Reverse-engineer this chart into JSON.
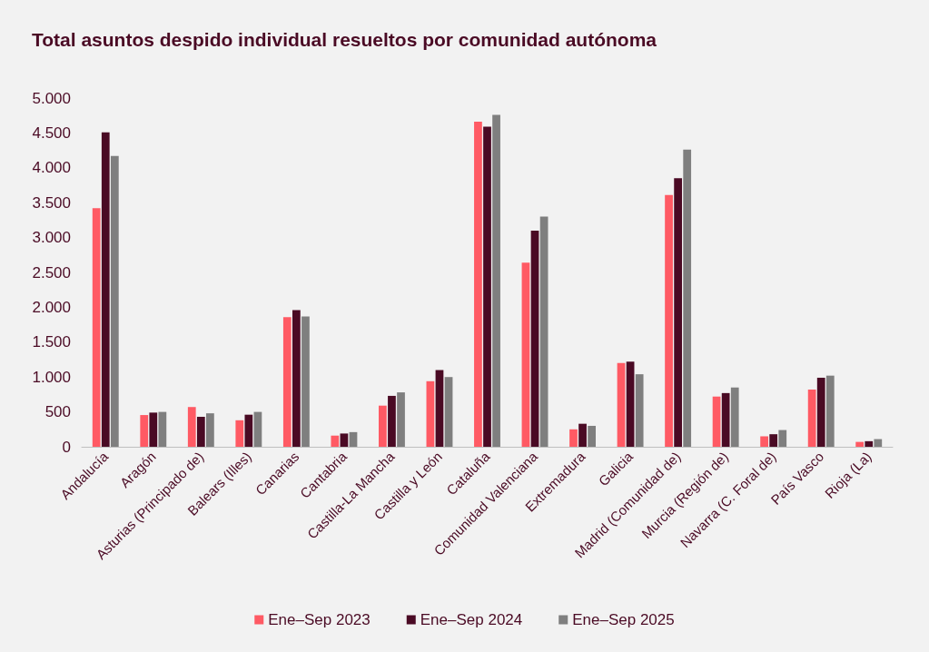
{
  "chart_data": {
    "type": "bar",
    "title": "Total asuntos despido individual resueltos por comunidad autónoma",
    "categories": [
      "Andalucía",
      "Aragón",
      "Asturias (Principado de)",
      "Balears (Illes)",
      "Canarias",
      "Cantabria",
      "Castilla-La Mancha",
      "Castilla y León",
      "Cataluña",
      "Comunidad Valenciana",
      "Extremadura",
      "Galicia",
      "Madrid (Comunidad de)",
      "Murcia (Región de)",
      "Navarra (C. Foral de)",
      "País Vasco",
      "Rioja (La)"
    ],
    "series": [
      {
        "name": "Ene–Sep 2023",
        "color": "#ff5a64",
        "values": [
          3420,
          455,
          570,
          380,
          1860,
          160,
          590,
          940,
          4660,
          2640,
          250,
          1200,
          3610,
          720,
          150,
          820,
          70
        ]
      },
      {
        "name": "Ene–Sep 2024",
        "color": "#4a0a24",
        "values": [
          4510,
          490,
          430,
          460,
          1960,
          190,
          730,
          1100,
          4590,
          3100,
          330,
          1220,
          3850,
          770,
          180,
          990,
          80
        ]
      },
      {
        "name": "Ene–Sep 2025",
        "color": "#7f7f7f",
        "values": [
          4170,
          500,
          480,
          500,
          1870,
          210,
          780,
          1000,
          4760,
          3300,
          300,
          1040,
          4260,
          850,
          240,
          1020,
          110
        ]
      }
    ],
    "ylim": [
      0,
      5000
    ],
    "yticks": [
      {
        "value": 0,
        "label": "0"
      },
      {
        "value": 500,
        "label": "500"
      },
      {
        "value": 1000,
        "label": "1.000"
      },
      {
        "value": 1500,
        "label": "1.500"
      },
      {
        "value": 2000,
        "label": "2.000"
      },
      {
        "value": 2500,
        "label": "2.500"
      },
      {
        "value": 3000,
        "label": "3.000"
      },
      {
        "value": 3500,
        "label": "3.500"
      },
      {
        "value": 4000,
        "label": "4.000"
      },
      {
        "value": 4500,
        "label": "4.500"
      },
      {
        "value": 5000,
        "label": "5.000"
      }
    ],
    "grid": false,
    "legend": "bottom"
  }
}
